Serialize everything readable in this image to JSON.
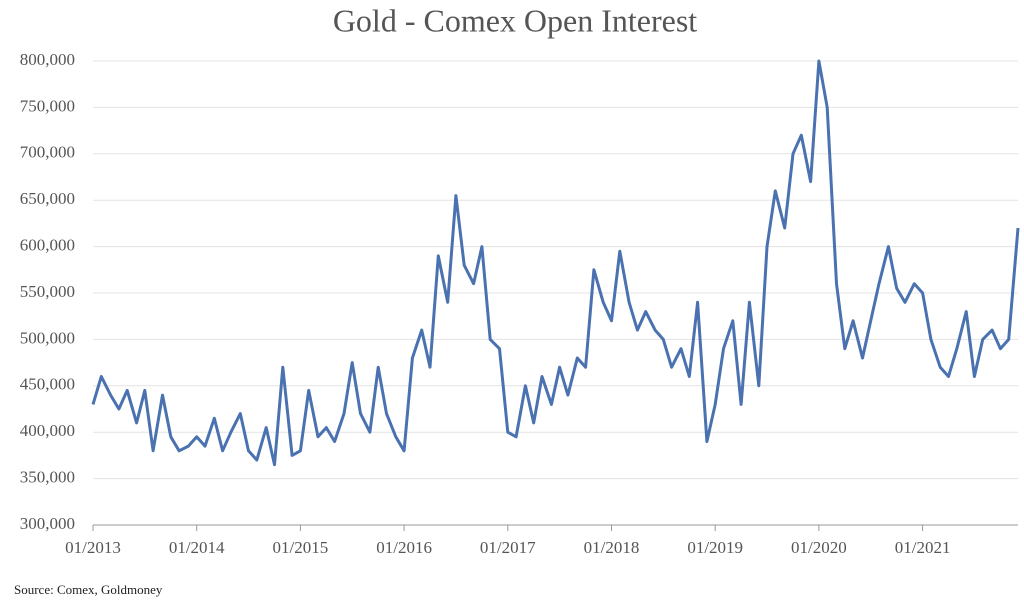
{
  "chart_data": {
    "type": "line",
    "title": "Gold - Comex Open Interest",
    "source": "Source: Comex, Goldmoney",
    "x": [
      2013.0,
      2013.08,
      2013.17,
      2013.25,
      2013.33,
      2013.42,
      2013.5,
      2013.58,
      2013.67,
      2013.75,
      2013.83,
      2013.92,
      2014.0,
      2014.08,
      2014.17,
      2014.25,
      2014.33,
      2014.42,
      2014.5,
      2014.58,
      2014.67,
      2014.75,
      2014.83,
      2014.92,
      2015.0,
      2015.08,
      2015.17,
      2015.25,
      2015.33,
      2015.42,
      2015.5,
      2015.58,
      2015.67,
      2015.75,
      2015.83,
      2015.92,
      2016.0,
      2016.08,
      2016.17,
      2016.25,
      2016.33,
      2016.42,
      2016.5,
      2016.58,
      2016.67,
      2016.75,
      2016.83,
      2016.92,
      2017.0,
      2017.08,
      2017.17,
      2017.25,
      2017.33,
      2017.42,
      2017.5,
      2017.58,
      2017.67,
      2017.75,
      2017.83,
      2017.92,
      2018.0,
      2018.08,
      2018.17,
      2018.25,
      2018.33,
      2018.42,
      2018.5,
      2018.58,
      2018.67,
      2018.75,
      2018.83,
      2018.92,
      2019.0,
      2019.08,
      2019.17,
      2019.25,
      2019.33,
      2019.42,
      2019.5,
      2019.58,
      2019.67,
      2019.75,
      2019.83,
      2019.92,
      2020.0,
      2020.08,
      2020.17,
      2020.25,
      2020.33,
      2020.42,
      2020.5,
      2020.58,
      2020.67,
      2020.75,
      2020.83,
      2020.92,
      2021.0,
      2021.08,
      2021.17,
      2021.25,
      2021.33,
      2021.42,
      2021.5,
      2021.58,
      2021.67,
      2021.75,
      2021.83,
      2021.92
    ],
    "series": [
      {
        "name": "Open Interest",
        "color": "#4a72b0",
        "values": [
          430000,
          460000,
          440000,
          425000,
          445000,
          410000,
          445000,
          380000,
          440000,
          395000,
          380000,
          385000,
          395000,
          385000,
          415000,
          380000,
          400000,
          420000,
          380000,
          370000,
          405000,
          365000,
          470000,
          375000,
          380000,
          445000,
          395000,
          405000,
          390000,
          420000,
          475000,
          420000,
          400000,
          470000,
          420000,
          395000,
          380000,
          480000,
          510000,
          470000,
          590000,
          540000,
          655000,
          580000,
          560000,
          600000,
          500000,
          490000,
          400000,
          395000,
          450000,
          410000,
          460000,
          430000,
          470000,
          440000,
          480000,
          470000,
          575000,
          540000,
          520000,
          595000,
          540000,
          510000,
          530000,
          510000,
          500000,
          470000,
          490000,
          460000,
          540000,
          390000,
          430000,
          490000,
          520000,
          430000,
          540000,
          450000,
          600000,
          660000,
          620000,
          700000,
          720000,
          670000,
          800000,
          750000,
          560000,
          490000,
          520000,
          480000,
          520000,
          560000,
          600000,
          555000,
          540000,
          560000,
          550000,
          500000,
          470000,
          460000,
          490000,
          530000,
          460000,
          500000,
          510000,
          490000,
          500000,
          620000
        ]
      }
    ],
    "xlim": [
      2013,
      2021.92
    ],
    "xticks": [
      {
        "value": 2013,
        "label": "01/2013"
      },
      {
        "value": 2014,
        "label": "01/2014"
      },
      {
        "value": 2015,
        "label": "01/2015"
      },
      {
        "value": 2016,
        "label": "01/2016"
      },
      {
        "value": 2017,
        "label": "01/2017"
      },
      {
        "value": 2018,
        "label": "01/2018"
      },
      {
        "value": 2019,
        "label": "01/2019"
      },
      {
        "value": 2020,
        "label": "01/2020"
      },
      {
        "value": 2021,
        "label": "01/2021"
      }
    ],
    "ylim": [
      300000,
      800000
    ],
    "yticks": [
      {
        "value": 300000,
        "label": "300,000"
      },
      {
        "value": 350000,
        "label": "350,000"
      },
      {
        "value": 400000,
        "label": "400,000"
      },
      {
        "value": 450000,
        "label": "450,000"
      },
      {
        "value": 500000,
        "label": "500,000"
      },
      {
        "value": 550000,
        "label": "550,000"
      },
      {
        "value": 600000,
        "label": "600,000"
      },
      {
        "value": 650000,
        "label": "650,000"
      },
      {
        "value": 700000,
        "label": "700,000"
      },
      {
        "value": 750000,
        "label": "750,000"
      },
      {
        "value": 800000,
        "label": "800,000"
      }
    ],
    "grid": true
  }
}
